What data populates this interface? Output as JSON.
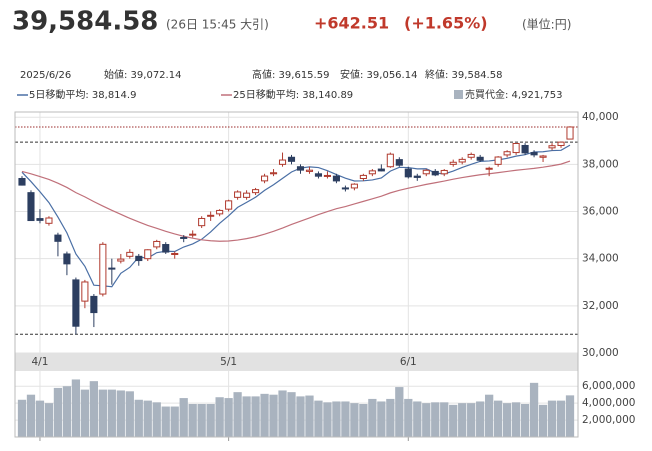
{
  "quote": {
    "price": "39,584.58",
    "timestamp": "(26日 15:45 大引)",
    "change": "+642.51",
    "change_pct": "(+1.65%)",
    "unit": "(単位:円)",
    "date": "2025/6/26",
    "open": "始値: 39,072.14",
    "high": "高値: 39,615.59",
    "low": "安値: 39,056.14",
    "close": "終値: 39,584.58"
  },
  "chart_data": {
    "type": "candlestick",
    "categories": [
      null,
      null,
      "4/1",
      null,
      null,
      null,
      null,
      null,
      null,
      null,
      null,
      null,
      null,
      null,
      null,
      null,
      null,
      null,
      null,
      null,
      null,
      null,
      null,
      "5/1",
      null,
      null,
      null,
      null,
      null,
      null,
      null,
      null,
      null,
      null,
      null,
      null,
      null,
      null,
      null,
      null,
      null,
      null,
      null,
      "6/1",
      null,
      null,
      null,
      null,
      null,
      null,
      null,
      null,
      null,
      null,
      null,
      null,
      null,
      null,
      null,
      null,
      null,
      null
    ],
    "open": [
      37400,
      36800,
      35700,
      35500,
      35000,
      34200,
      33100,
      32200,
      32400,
      32500,
      33600,
      33900,
      34100,
      34100,
      34000,
      34500,
      34600,
      34200,
      34900,
      35000,
      35400,
      35800,
      35900,
      36100,
      36600,
      36600,
      36800,
      37300,
      37600,
      38000,
      38300,
      37900,
      37700,
      37600,
      37500,
      37500,
      37000,
      37000,
      37400,
      37600,
      37800,
      37900,
      38200,
      37800,
      37500,
      37600,
      37700,
      37600,
      38000,
      38100,
      38300,
      38300,
      37800,
      38000,
      38400,
      38500,
      38800,
      38500,
      38300,
      38700,
      38800,
      39072.14
    ],
    "high": [
      37500,
      36900,
      36100,
      35800,
      35100,
      34300,
      33200,
      33100,
      32500,
      34700,
      34000,
      34200,
      34400,
      34200,
      34400,
      34800,
      34700,
      34300,
      35000,
      35200,
      35800,
      36000,
      36100,
      36500,
      36900,
      36900,
      37000,
      37600,
      37800,
      38500,
      38400,
      38000,
      37900,
      37700,
      37700,
      37600,
      37100,
      37200,
      37600,
      37800,
      38000,
      38500,
      38300,
      37900,
      37600,
      37800,
      37800,
      37800,
      38200,
      38300,
      38500,
      38400,
      37900,
      38350,
      38600,
      38900,
      38900,
      38600,
      38400,
      38900,
      38950,
      39615.59
    ],
    "low": [
      37100,
      35600,
      35500,
      35400,
      34100,
      33300,
      30792.74,
      31900,
      31100,
      32400,
      32900,
      33800,
      34000,
      33700,
      33900,
      34400,
      34200,
      34000,
      34700,
      34900,
      35300,
      35600,
      35800,
      36000,
      36500,
      36500,
      36700,
      37200,
      37500,
      37900,
      38000,
      37600,
      37600,
      37400,
      37400,
      37200,
      36850,
      36900,
      37300,
      37500,
      37700,
      37850,
      37900,
      37400,
      37300,
      37500,
      37500,
      37500,
      37900,
      38000,
      38200,
      38100,
      37500,
      37900,
      38300,
      38400,
      38400,
      38300,
      38100,
      38600,
      38700,
      39056.14
    ],
    "close": [
      37120,
      35617,
      35624,
      35725,
      34736,
      33780,
      31136,
      33012,
      31714,
      34609,
      33586,
      33982,
      34267,
      33920,
      34377,
      34730,
      34280,
      34220,
      34868,
      35039,
      35705,
      35839,
      36045,
      36452,
      36830,
      36779,
      36928,
      37503,
      37644,
      38183,
      38128,
      37755,
      37753,
      37498,
      37529,
      37298,
      36985,
      37160,
      37531,
      37724,
      37722,
      38432,
      37965,
      37470,
      37446,
      37747,
      37554,
      37741,
      38088,
      38211,
      38421,
      38173,
      37834,
      38311,
      38536,
      38885,
      38488,
      38403,
      38354,
      38790,
      38942.07,
      39584.58
    ],
    "up_color": "#b03a2e",
    "down_color": "#2c3e60",
    "series": [
      {
        "name": "5日移動平均: 38,814.9",
        "color": "#4a6fa5",
        "values": [
          37667,
          37269,
          36837,
          36377,
          35764,
          35096,
          34200,
          33678,
          32876,
          32850,
          32811,
          33381,
          33632,
          34073,
          34026,
          34255,
          34315,
          34305,
          34495,
          34627,
          34822,
          35134,
          35499,
          35816,
          36174,
          36389,
          36607,
          36898,
          37137,
          37407,
          37677,
          37843,
          37893,
          37863,
          37733,
          37567,
          37413,
          37294,
          37301,
          37340,
          37424,
          37714,
          37875,
          37863,
          37807,
          37812,
          37636,
          37592,
          37715,
          37868,
          38003,
          38127,
          38145,
          38190,
          38255,
          38348,
          38411,
          38525,
          38533,
          38584,
          38595,
          38814.9
        ]
      },
      {
        "name": "25日移動平均: 38,140.89",
        "color": "#c0707a",
        "values": [
          37700,
          37600,
          37480,
          37360,
          37200,
          37020,
          36800,
          36620,
          36420,
          36230,
          36050,
          35880,
          35710,
          35560,
          35410,
          35290,
          35160,
          35050,
          34950,
          34870,
          34800,
          34760,
          34740,
          34750,
          34790,
          34850,
          34930,
          35040,
          35160,
          35300,
          35450,
          35590,
          35730,
          35870,
          36000,
          36120,
          36210,
          36320,
          36430,
          36540,
          36650,
          36790,
          36900,
          36990,
          37070,
          37150,
          37220,
          37290,
          37370,
          37440,
          37500,
          37560,
          37600,
          37650,
          37700,
          37750,
          37790,
          37830,
          37880,
          37940,
          38010,
          38140.89
        ]
      }
    ],
    "ylim": [
      30000,
      40220
    ],
    "yticks": [
      {
        "value": 30000,
        "label": "30,000"
      },
      {
        "value": 32000,
        "label": "32,000"
      },
      {
        "value": 34000,
        "label": "34,000"
      },
      {
        "value": 36000,
        "label": "36,000"
      },
      {
        "value": 38000,
        "label": "38,000"
      },
      {
        "value": 40000,
        "label": "40,000"
      }
    ],
    "reference_lines": [
      {
        "value": 39584.58,
        "color": "#9b2c2c"
      },
      {
        "value": 38942.07,
        "color": "#333333"
      },
      {
        "value": 30792.74,
        "color": "#333333"
      }
    ],
    "grid": true,
    "volume": {
      "name": "売買代金: 4,921,753",
      "color": "#a9b3bf",
      "values": [
        4400000,
        5000000,
        4300000,
        4000000,
        5800000,
        6000000,
        6800000,
        5600000,
        6600000,
        5600000,
        5600000,
        5500000,
        5400000,
        4400000,
        4300000,
        4100000,
        3600000,
        3600000,
        4600000,
        3900000,
        3900000,
        3900000,
        4700000,
        4600000,
        5300000,
        4800000,
        4800000,
        5100000,
        5000000,
        5500000,
        5300000,
        4800000,
        4900000,
        4300000,
        4100000,
        4200000,
        4200000,
        4000000,
        3900000,
        4500000,
        4200000,
        4500000,
        5900000,
        4500000,
        4200000,
        4000000,
        4100000,
        4100000,
        3800000,
        4000000,
        4000000,
        4200000,
        5000000,
        4300000,
        4000000,
        4100000,
        3900000,
        6400000,
        3800000,
        4300000,
        4300000,
        4921753
      ],
      "ylim": [
        0,
        7800000
      ],
      "yticks": [
        {
          "value": 2000000,
          "label": "2,000,000"
        },
        {
          "value": 4000000,
          "label": "4,000,000"
        },
        {
          "value": 6000000,
          "label": "6,000,000"
        }
      ]
    }
  }
}
